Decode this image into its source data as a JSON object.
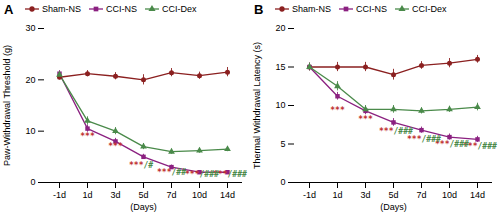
{
  "chart_data": [
    {
      "type": "line",
      "title": "A",
      "xlabel": "(Days)",
      "ylabel": "Paw-Withdrawal Threshold (g)",
      "categories": [
        "-1d",
        "1d",
        "3d",
        "5d",
        "7d",
        "10d",
        "14d"
      ],
      "ylim": [
        0,
        30
      ],
      "yticks": [
        0,
        10,
        20,
        30
      ],
      "grid": false,
      "legend": "top",
      "series": [
        {
          "name": "Sham-NS",
          "color": "#8B2020",
          "marker": "circle",
          "values": [
            20.5,
            21.2,
            20.7,
            20.0,
            21.4,
            20.8,
            21.5
          ],
          "yerr": [
            0.5,
            0.6,
            0.7,
            1.0,
            0.8,
            0.7,
            0.9
          ]
        },
        {
          "name": "CCI-NS",
          "color": "#8B2080",
          "marker": "square",
          "values": [
            21.2,
            10.5,
            8.0,
            5.0,
            3.0,
            2.0,
            2.0
          ],
          "yerr": [
            0.6,
            0.7,
            0.6,
            0.5,
            0.4,
            0.3,
            0.3
          ]
        },
        {
          "name": "CCI-Dex",
          "color": "#4A8A4A",
          "marker": "triangle",
          "values": [
            21.0,
            12.0,
            10.0,
            7.0,
            6.0,
            6.2,
            6.5
          ],
          "yerr": [
            0.6,
            0.8,
            0.7,
            0.6,
            0.5,
            0.5,
            0.5
          ]
        }
      ],
      "annotations": [
        {
          "x": "1d",
          "y": 8.5,
          "parts": [
            {
              "text": "***",
              "color": "#C03030"
            }
          ]
        },
        {
          "x": "3d",
          "y": 6.5,
          "parts": [
            {
              "text": "***",
              "color": "#C03030"
            }
          ]
        },
        {
          "x": "5d",
          "y": 2.8,
          "parts": [
            {
              "text": "***",
              "color": "#C03030"
            },
            {
              "text": "/#",
              "color": "#4A8A4A"
            }
          ]
        },
        {
          "x": "7d",
          "y": 1.5,
          "parts": [
            {
              "text": "***",
              "color": "#C03030"
            },
            {
              "text": "/##",
              "color": "#4A8A4A"
            }
          ]
        },
        {
          "x": "10d",
          "y": 1.0,
          "parts": [
            {
              "text": "***",
              "color": "#C03030"
            },
            {
              "text": "/###",
              "color": "#4A8A4A"
            }
          ]
        },
        {
          "x": "14d",
          "y": 1.0,
          "parts": [
            {
              "text": "***",
              "color": "#C03030"
            },
            {
              "text": "/###",
              "color": "#4A8A4A"
            }
          ]
        }
      ]
    },
    {
      "type": "line",
      "title": "B",
      "xlabel": "(Days)",
      "ylabel": "Thermal Withdrawal Latency (s)",
      "categories": [
        "-1d",
        "1d",
        "3d",
        "5d",
        "7d",
        "10d",
        "14d"
      ],
      "ylim": [
        0,
        20
      ],
      "yticks": [
        0,
        5,
        10,
        15,
        20
      ],
      "grid": false,
      "legend": "top",
      "series": [
        {
          "name": "Sham-NS",
          "color": "#8B2020",
          "marker": "circle",
          "values": [
            15.0,
            15.0,
            15.0,
            14.0,
            15.2,
            15.5,
            16.0
          ],
          "yerr": [
            0.5,
            0.6,
            0.6,
            0.7,
            0.5,
            0.6,
            0.5
          ]
        },
        {
          "name": "CCI-NS",
          "color": "#8B2080",
          "marker": "square",
          "values": [
            15.0,
            11.2,
            9.3,
            7.8,
            6.8,
            5.9,
            5.6
          ],
          "yerr": [
            0.5,
            0.5,
            0.5,
            0.5,
            0.4,
            0.4,
            0.4
          ]
        },
        {
          "name": "CCI-Dex",
          "color": "#4A8A4A",
          "marker": "triangle",
          "values": [
            15.0,
            12.5,
            9.5,
            9.5,
            9.3,
            9.5,
            9.8
          ],
          "yerr": [
            0.5,
            0.6,
            0.5,
            0.5,
            0.4,
            0.4,
            0.5
          ]
        }
      ],
      "annotations": [
        {
          "x": "1d",
          "y": 9.0,
          "parts": [
            {
              "text": "***",
              "color": "#C03030"
            }
          ]
        },
        {
          "x": "3d",
          "y": 7.8,
          "parts": [
            {
              "text": "***",
              "color": "#C03030"
            }
          ]
        },
        {
          "x": "5d",
          "y": 6.3,
          "parts": [
            {
              "text": "***",
              "color": "#C03030"
            },
            {
              "text": "/###",
              "color": "#4A8A4A"
            }
          ]
        },
        {
          "x": "7d",
          "y": 5.3,
          "parts": [
            {
              "text": "***",
              "color": "#C03030"
            },
            {
              "text": "/###",
              "color": "#4A8A4A"
            }
          ]
        },
        {
          "x": "10d",
          "y": 4.6,
          "parts": [
            {
              "text": "***",
              "color": "#C03030"
            },
            {
              "text": "/###",
              "color": "#4A8A4A"
            }
          ]
        },
        {
          "x": "14d",
          "y": 4.3,
          "parts": [
            {
              "text": "***",
              "color": "#C03030"
            },
            {
              "text": "/###",
              "color": "#4A8A4A"
            }
          ]
        }
      ]
    }
  ]
}
